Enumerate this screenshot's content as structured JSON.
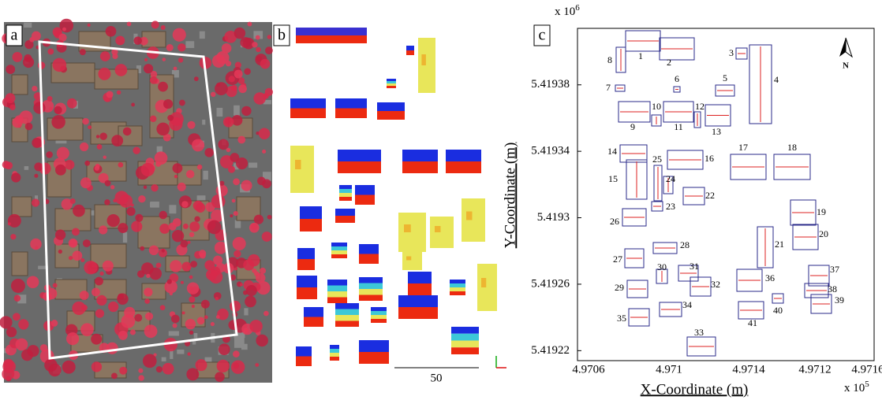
{
  "panels": {
    "a": {
      "label": "a"
    },
    "b": {
      "label": "b",
      "scale_bar": 50
    }
  },
  "chart_data": {
    "type": "outline",
    "label": "c",
    "xlabel": "X-Coordinate (m)",
    "ylabel": "Y-Coordinate (m)",
    "x_factor": {
      "base": "x 10",
      "exponent": "5"
    },
    "y_factor": {
      "base": "x 10",
      "exponent": "6"
    },
    "ylim": [
      5.419214,
      5.419414
    ],
    "yticks": [
      5.41938,
      5.41934,
      5.4193,
      5.41926,
      5.41922
    ],
    "xtick_labels": [
      "4.9706",
      "4.971",
      "4.9714",
      "4.9712",
      "4.9716"
    ],
    "north": "N",
    "building_labels": [
      "1",
      "2",
      "3",
      "4",
      "5",
      "6",
      "7",
      "8",
      "9",
      "10",
      "11",
      "12",
      "13",
      "14",
      "15",
      "16",
      "17",
      "18",
      "19",
      "20",
      "21",
      "22",
      "23",
      "24",
      "25",
      "26",
      "27",
      "28",
      "29",
      "30",
      "31",
      "32",
      "33",
      "34",
      "35",
      "36",
      "37",
      "38",
      "39",
      "40",
      "41"
    ]
  }
}
